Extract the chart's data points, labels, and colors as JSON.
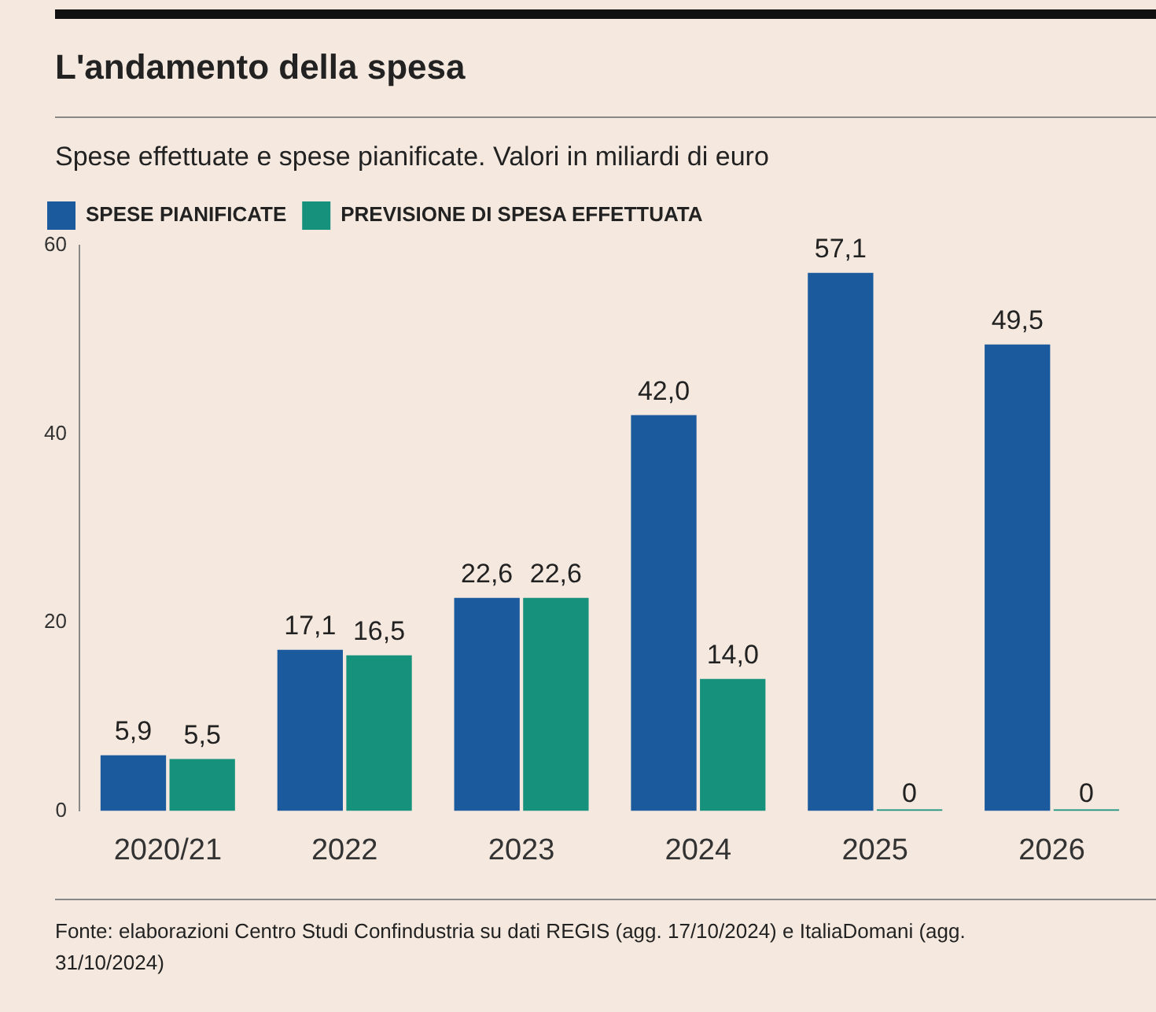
{
  "chart_data": {
    "type": "bar",
    "title": "L'andamento della spesa",
    "subtitle": "Spese effettuate e spese pianificate. Valori in miliardi di euro",
    "categories": [
      "2020/21",
      "2022",
      "2023",
      "2024",
      "2025",
      "2026"
    ],
    "series": [
      {
        "name": "SPESE PIANIFICATE",
        "color": "#1b5a9c",
        "values": [
          5.9,
          17.1,
          22.6,
          42.0,
          57.1,
          49.5
        ],
        "value_labels": [
          "5,9",
          "17,1",
          "22,6",
          "42,0",
          "57,1",
          "49,5"
        ]
      },
      {
        "name": "PREVISIONE DI SPESA EFFETTUATA",
        "color": "#16917c",
        "values": [
          5.5,
          16.5,
          22.6,
          14.0,
          0,
          0
        ],
        "value_labels": [
          "5,5",
          "16,5",
          "22,6",
          "14,0",
          "0",
          "0"
        ]
      }
    ],
    "ylim": [
      0,
      60
    ],
    "yticks": [
      0,
      20,
      40,
      60
    ],
    "grid": false,
    "legend": "top left",
    "annotations": [
      "Fonte: elaborazioni Centro Studi Confindustria su dati REGIS (agg. 17/10/2024) e ItaliaDomani (agg. 31/10/2024)"
    ]
  }
}
